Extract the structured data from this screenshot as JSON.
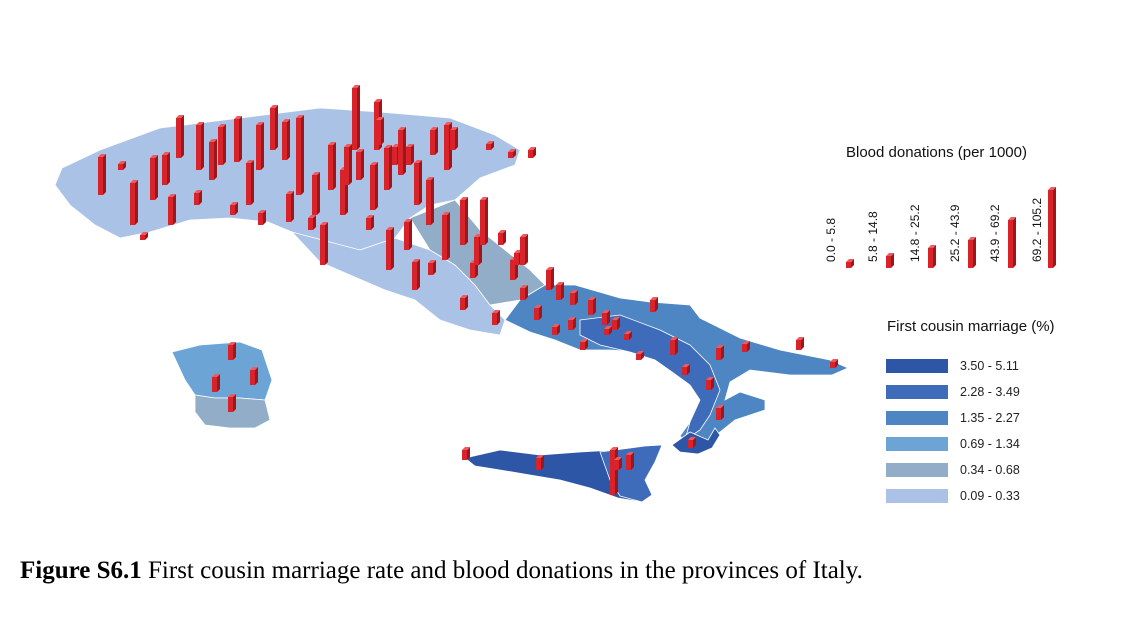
{
  "blood_legend": {
    "title": "Blood donations (per 1000)",
    "classes": [
      "0.0 - 5.8",
      "5.8 - 14.8",
      "14.8 - 25.2",
      "25.2 - 43.9",
      "43.9 - 69.2",
      "69.2 - 105.2"
    ]
  },
  "marriage_legend": {
    "title": "First cousin marriage (%)",
    "items": [
      {
        "label": "3.50 - 5.11",
        "color": "#2e56a6"
      },
      {
        "label": "2.28 - 3.49",
        "color": "#3f6cba"
      },
      {
        "label": "1.35 - 2.27",
        "color": "#4d86c2"
      },
      {
        "label": "0.69 - 1.34",
        "color": "#6da4d6"
      },
      {
        "label": "0.34 - 0.68",
        "color": "#91adc8"
      },
      {
        "label": "0.09 - 0.33",
        "color": "#a9c2e6"
      }
    ]
  },
  "bar_color": "#d9232a",
  "caption": {
    "label": "Figure S6.1",
    "text": " First cousin marriage rate and blood donations in the provinces of Italy."
  }
}
